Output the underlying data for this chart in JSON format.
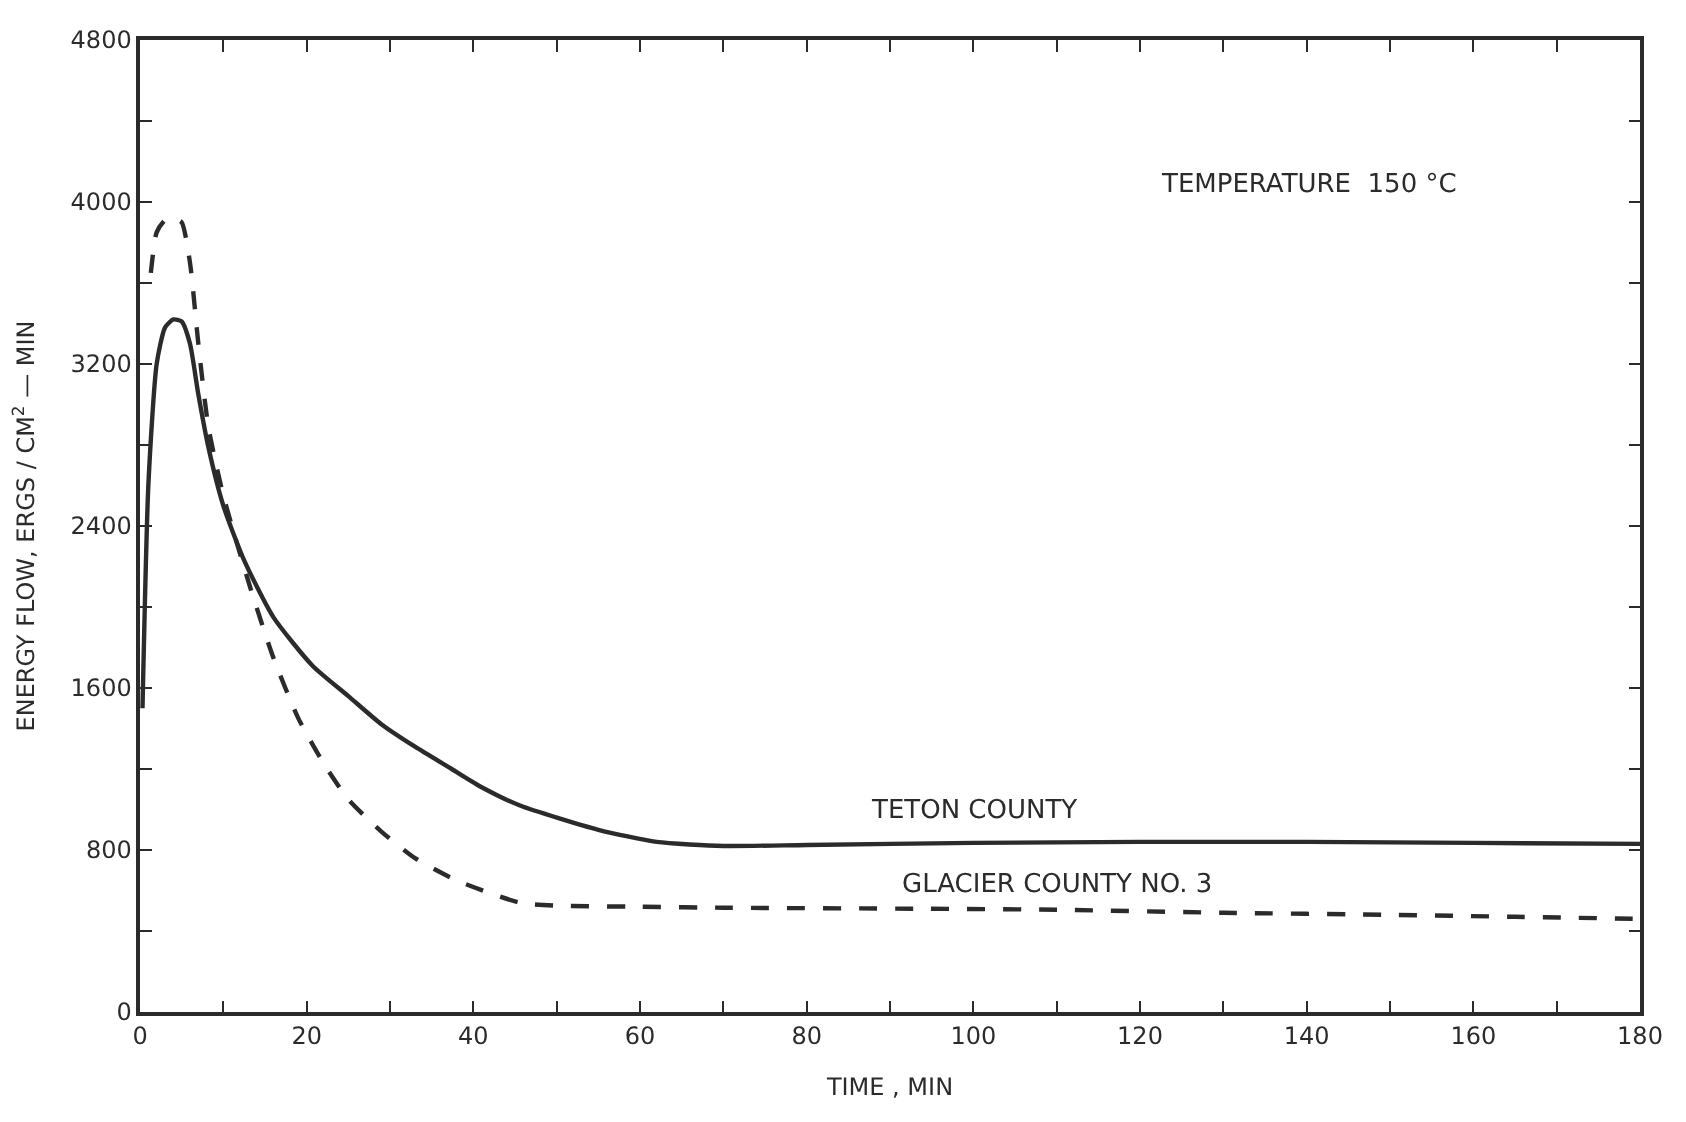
{
  "chart_data": {
    "type": "line",
    "xlabel": "TIME , MIN",
    "ylabel": "ENERGY FLOW, ERGS / CM$^{2}$ — MIN",
    "annotations": [
      "TEMPERATURE  150 °C"
    ],
    "xlim": [
      0,
      180
    ],
    "ylim": [
      0,
      4800
    ],
    "xticks": [
      0,
      {
        "value": 10,
        "label": null
      },
      20,
      {
        "value": 30,
        "label": null
      },
      40,
      {
        "value": 50,
        "label": null
      },
      60,
      {
        "value": 70,
        "label": null
      },
      80,
      {
        "value": 90,
        "label": null
      },
      100,
      {
        "value": 110,
        "label": null
      },
      120,
      {
        "value": 130,
        "label": null
      },
      140,
      {
        "value": 150,
        "label": null
      },
      160,
      {
        "value": 170,
        "label": null
      },
      180
    ],
    "yticks": [
      0,
      {
        "value": 400,
        "label": null
      },
      800,
      {
        "value": 1200,
        "label": null
      },
      1600,
      {
        "value": 2000,
        "label": null
      },
      2400,
      {
        "value": 2800,
        "label": null
      },
      3200,
      {
        "value": 3600,
        "label": null
      },
      4000,
      {
        "value": 4400,
        "label": null
      },
      4800
    ],
    "legend": false,
    "marker": "none",
    "series": [
      {
        "name": "TETON COUNTY",
        "color": "#2b2b2b",
        "line_style": "solid",
        "x": [
          0.3,
          1,
          2,
          3,
          4,
          5,
          6,
          7,
          8.2,
          10,
          12.5,
          16,
          20.7,
          25,
          29,
          33,
          37.4,
          41,
          45.6,
          55,
          62,
          70,
          80,
          100,
          120,
          140,
          160,
          180
        ],
        "values": [
          1500,
          2600,
          3200,
          3380,
          3420,
          3410,
          3300,
          3050,
          2790,
          2500,
          2230,
          1950,
          1710,
          1560,
          1420,
          1310,
          1200,
          1110,
          1020,
          900,
          840,
          820,
          825,
          835,
          840,
          840,
          835,
          830
        ]
      },
      {
        "name": "GLACIER COUNTY NO. 3",
        "color": "#2b2b2b",
        "line_style": "dashed",
        "x": [
          1.3,
          2,
          3,
          4,
          5,
          6,
          7,
          8.2,
          10,
          13.2,
          16,
          19,
          22,
          25,
          29,
          33,
          38,
          45.6,
          50,
          60,
          70,
          93.5,
          110,
          130,
          150,
          165,
          180
        ],
        "values": [
          3650,
          3850,
          3910,
          3920,
          3900,
          3700,
          3300,
          2890,
          2550,
          2100,
          1750,
          1450,
          1230,
          1050,
          890,
          760,
          650,
          540,
          525,
          520,
          515,
          510,
          505,
          490,
          480,
          470,
          460
        ]
      }
    ]
  }
}
